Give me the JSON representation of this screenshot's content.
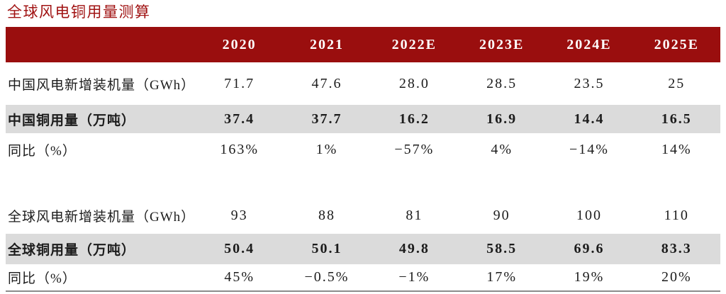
{
  "title": "全球风电铜用量测算",
  "colors": {
    "header_bg": "#9A0E0E",
    "header_text": "#FFFFFF",
    "stripe_bg": "#DBDBDB",
    "title_color": "#A01212",
    "text_color": "#1C1C1C",
    "rule_color": "#8C8C8C"
  },
  "chart_data": {
    "type": "table",
    "title": "全球风电铜用量测算",
    "columns": [
      "2020",
      "2021",
      "2022E",
      "2023E",
      "2024E",
      "2025E"
    ],
    "rows": [
      {
        "label": "中国风电新增装机量（GWh）",
        "values": [
          "71.7",
          "47.6",
          "28.0",
          "28.5",
          "23.5",
          "25"
        ],
        "emphasis": false,
        "spacer": false
      },
      {
        "label": "中国铜用量（万吨）",
        "values": [
          "37.4",
          "37.7",
          "16.2",
          "16.9",
          "14.4",
          "16.5"
        ],
        "emphasis": true,
        "spacer": false
      },
      {
        "label": "同比（%）",
        "values": [
          "163%",
          "1%",
          "−57%",
          "4%",
          "−14%",
          "14%"
        ],
        "emphasis": false,
        "spacer": false
      },
      {
        "label": "",
        "values": [
          "",
          "",
          "",
          "",
          "",
          ""
        ],
        "emphasis": false,
        "spacer": true
      },
      {
        "label": "全球风电新增装机量（GWh）",
        "values": [
          "93",
          "88",
          "81",
          "90",
          "100",
          "110"
        ],
        "emphasis": false,
        "spacer": false
      },
      {
        "label": "全球铜用量（万吨）",
        "values": [
          "50.4",
          "50.1",
          "49.8",
          "58.5",
          "69.6",
          "83.3"
        ],
        "emphasis": true,
        "spacer": false
      },
      {
        "label": "同比（%）",
        "values": [
          "45%",
          "−0.5%",
          "−1%",
          "17%",
          "19%",
          "20%"
        ],
        "emphasis": false,
        "spacer": false
      }
    ]
  }
}
